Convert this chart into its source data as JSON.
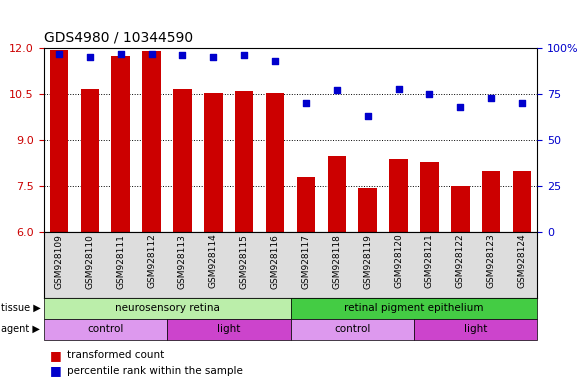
{
  "title": "GDS4980 / 10344590",
  "samples": [
    "GSM928109",
    "GSM928110",
    "GSM928111",
    "GSM928112",
    "GSM928113",
    "GSM928114",
    "GSM928115",
    "GSM928116",
    "GSM928117",
    "GSM928118",
    "GSM928119",
    "GSM928120",
    "GSM928121",
    "GSM928122",
    "GSM928123",
    "GSM928124"
  ],
  "transformed_count": [
    11.95,
    10.65,
    11.75,
    11.9,
    10.65,
    10.55,
    10.6,
    10.55,
    7.8,
    8.5,
    7.45,
    8.4,
    8.3,
    7.5,
    8.0,
    8.0
  ],
  "percentile_rank": [
    97,
    95,
    97,
    97,
    96,
    95,
    96,
    93,
    70,
    77,
    63,
    78,
    75,
    68,
    73,
    70
  ],
  "ylim_left": [
    6,
    12
  ],
  "ylim_right": [
    0,
    100
  ],
  "yticks_left": [
    6,
    7.5,
    9,
    10.5,
    12
  ],
  "yticks_right": [
    0,
    25,
    50,
    75,
    100
  ],
  "bar_color": "#cc0000",
  "dot_color": "#0000cc",
  "tissue_groups": [
    {
      "label": "neurosensory retina",
      "start": 0,
      "end": 8,
      "color": "#bbeeaa"
    },
    {
      "label": "retinal pigment epithelium",
      "start": 8,
      "end": 16,
      "color": "#44cc44"
    }
  ],
  "agent_groups": [
    {
      "label": "control",
      "start": 0,
      "end": 4,
      "color": "#dd99ee"
    },
    {
      "label": "light",
      "start": 4,
      "end": 8,
      "color": "#cc44cc"
    },
    {
      "label": "control",
      "start": 8,
      "end": 12,
      "color": "#dd99ee"
    },
    {
      "label": "light",
      "start": 12,
      "end": 16,
      "color": "#cc44cc"
    }
  ],
  "legend_items": [
    {
      "label": "transformed count",
      "color": "#cc0000"
    },
    {
      "label": "percentile rank within the sample",
      "color": "#0000cc"
    }
  ],
  "background_color": "#ffffff",
  "plot_bg_color": "#ffffff",
  "grid_color": "#000000",
  "tick_color_left": "#cc0000",
  "tick_color_right": "#0000cc"
}
